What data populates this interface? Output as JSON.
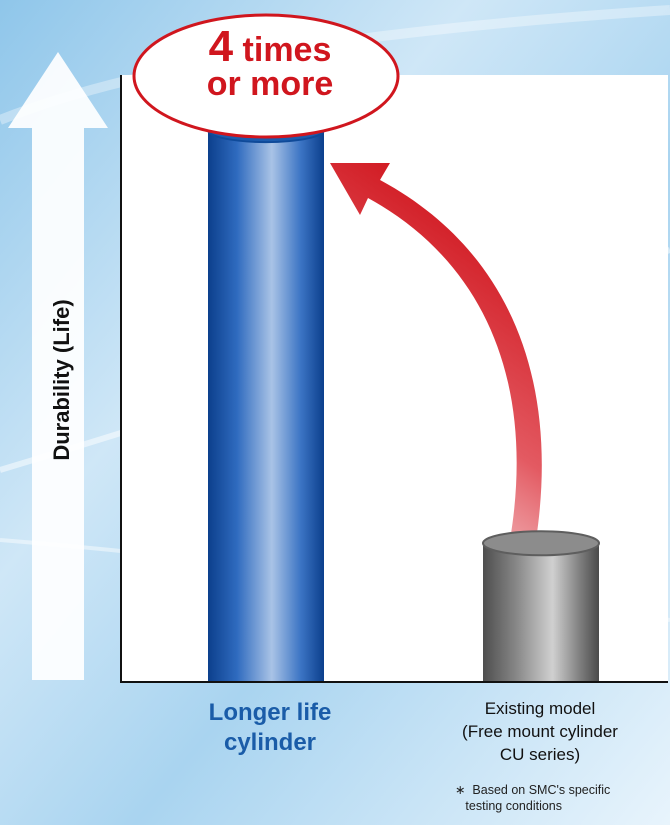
{
  "chart_data": {
    "type": "bar",
    "title": "",
    "xlabel": "",
    "ylabel": "Durability (Life)",
    "categories": [
      "Longer life cylinder",
      "Existing model (Free mount cylinder CU series)"
    ],
    "series": [
      {
        "values": [
          4,
          1
        ]
      }
    ],
    "ylim": [
      0,
      4.4
    ],
    "grid": false,
    "annotation": {
      "number": "4",
      "word": "times",
      "line2": "or more"
    },
    "footnote": "∗ Based on SMC's specific testing conditions",
    "colors": {
      "bar_new": "#1e5aa8",
      "bar_existing": "#7a7a7a",
      "accent": "#d0161e",
      "label_new": "#1a5ca8"
    }
  },
  "category_display": {
    "new": "Longer life\ncylinder",
    "existing": "Existing model\n(Free mount cylinder\nCU series)"
  }
}
